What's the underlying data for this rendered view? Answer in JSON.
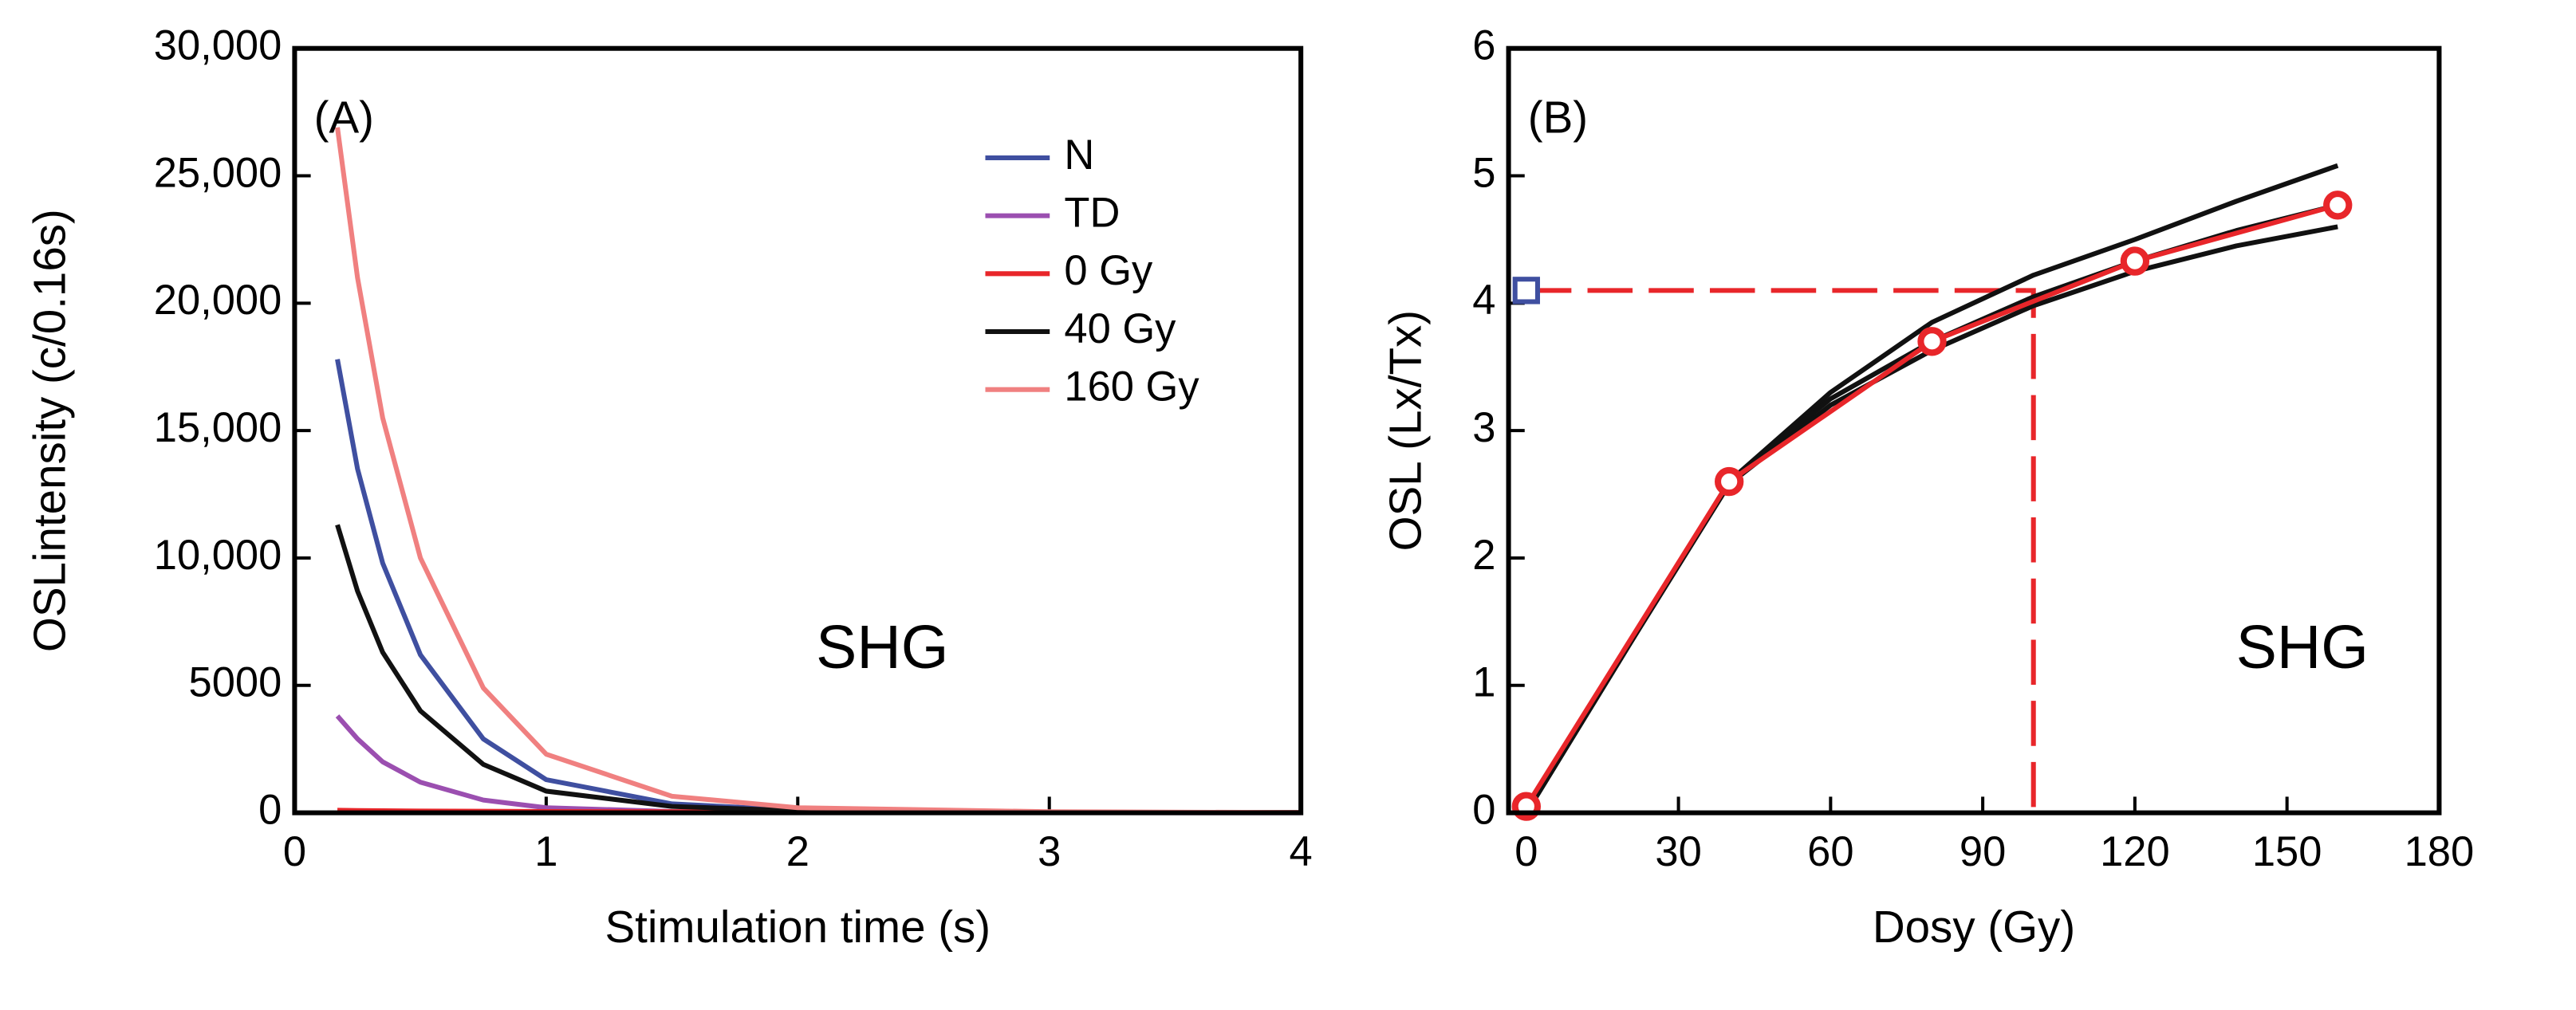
{
  "chart_data": [
    {
      "type": "line",
      "panel_label": "(A)",
      "annotation": "SHG",
      "x_label": "Stimulation time (s)",
      "y_label": "OSLintensity (c/0.16s)",
      "xlim": [
        0,
        4
      ],
      "ylim": [
        0,
        30000
      ],
      "xticks": [
        0,
        1,
        2,
        3,
        4
      ],
      "yticks": [
        0,
        5000,
        {
          "value": 10000,
          "label": "10,000"
        },
        {
          "value": 15000,
          "label": "15,000"
        },
        {
          "value": 20000,
          "label": "20,000"
        },
        {
          "value": 25000,
          "label": "25,000"
        },
        {
          "value": 30000,
          "label": "30,000"
        }
      ],
      "legend": "upper right",
      "x": [
        0.17,
        0.25,
        0.35,
        0.5,
        0.75,
        1,
        1.5,
        2,
        3,
        4
      ],
      "series": [
        {
          "name": "N",
          "color": "#3f4fa0",
          "values": [
            17800,
            13500,
            9800,
            6200,
            2900,
            1300,
            350,
            100,
            20,
            10
          ]
        },
        {
          "name": "TD",
          "color": "#9b4fb0",
          "values": [
            3800,
            2900,
            2000,
            1200,
            500,
            200,
            50,
            20,
            5,
            0
          ]
        },
        {
          "name": "0 Gy",
          "color": "#e8262a",
          "values": [
            100,
            90,
            80,
            70,
            60,
            50,
            40,
            30,
            20,
            10
          ]
        },
        {
          "name": "40 Gy",
          "color": "#111111",
          "values": [
            11300,
            8700,
            6300,
            4000,
            1900,
            850,
            250,
            80,
            20,
            10
          ]
        },
        {
          "name": "160 Gy",
          "color": "#f08080",
          "values": [
            26900,
            21000,
            15500,
            10000,
            4900,
            2300,
            650,
            200,
            40,
            10
          ]
        }
      ]
    },
    {
      "type": "line",
      "panel_label": "(B)",
      "annotation": "SHG",
      "x_label": "Dosy (Gy)",
      "y_label": "OSL  (Lx/Tx)",
      "xlim": [
        -3.5,
        180
      ],
      "ylim": [
        0,
        6
      ],
      "xticks": [
        0,
        30,
        60,
        90,
        120,
        150,
        180
      ],
      "yticks": [
        0,
        1,
        2,
        3,
        4,
        5,
        6
      ],
      "series": [
        {
          "color": "#111111",
          "x": [
            0,
            20,
            40,
            60,
            80,
            100,
            120,
            140,
            160
          ],
          "values": [
            0,
            1.3,
            2.6,
            3.3,
            3.85,
            4.22,
            4.5,
            4.8,
            5.08
          ]
        },
        {
          "color": "#111111",
          "x": [
            0,
            20,
            40,
            60,
            80,
            100,
            120,
            140,
            160
          ],
          "values": [
            0,
            1.3,
            2.6,
            3.25,
            3.7,
            4.05,
            4.33,
            4.57,
            4.77
          ]
        },
        {
          "color": "#111111",
          "x": [
            0,
            20,
            40,
            60,
            80,
            100,
            120,
            140,
            160
          ],
          "values": [
            0,
            1.3,
            2.58,
            3.2,
            3.63,
            3.98,
            4.25,
            4.45,
            4.6
          ]
        },
        {
          "color": "#e8262a",
          "markers": true,
          "x": [
            0,
            40,
            80,
            120,
            160
          ],
          "values": [
            0.05,
            2.6,
            3.7,
            4.33,
            4.77
          ]
        }
      ],
      "projection": {
        "color": "#e8262a",
        "x_start": 0,
        "x": 100,
        "y": 4.1,
        "marker_color": "#3f4fa0"
      }
    }
  ]
}
